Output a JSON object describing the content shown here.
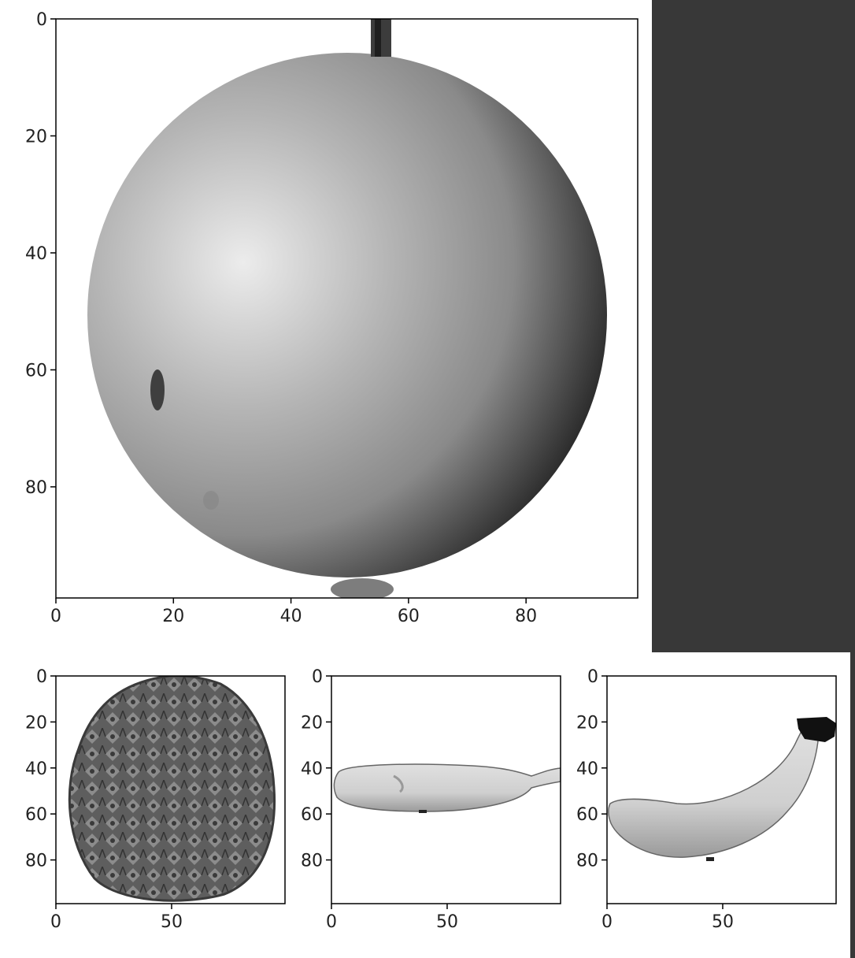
{
  "chart_data": [
    {
      "type": "image",
      "subject": "apple",
      "xticks": [
        0,
        20,
        40,
        60,
        80
      ],
      "yticks": [
        0,
        20,
        40,
        60,
        80
      ],
      "xlim": [
        0,
        99
      ],
      "ylim": [
        99,
        0
      ]
    },
    {
      "type": "image",
      "subject": "pineapple",
      "xticks": [
        0,
        50
      ],
      "yticks": [
        0,
        20,
        40,
        60,
        80
      ],
      "xlim": [
        0,
        99
      ],
      "ylim": [
        99,
        0
      ]
    },
    {
      "type": "image",
      "subject": "banana-horizontal",
      "xticks": [
        0,
        50
      ],
      "yticks": [
        0,
        20,
        40,
        60,
        80
      ],
      "xlim": [
        0,
        99
      ],
      "ylim": [
        99,
        0
      ]
    },
    {
      "type": "image",
      "subject": "banana-curved",
      "xticks": [
        0,
        50
      ],
      "yticks": [
        0,
        20,
        40,
        60,
        80
      ],
      "xlim": [
        0,
        99
      ],
      "ylim": [
        99,
        0
      ]
    }
  ],
  "colors": {
    "background": "#ffffff",
    "dark_panel": "#383838",
    "axis": "#000000"
  }
}
